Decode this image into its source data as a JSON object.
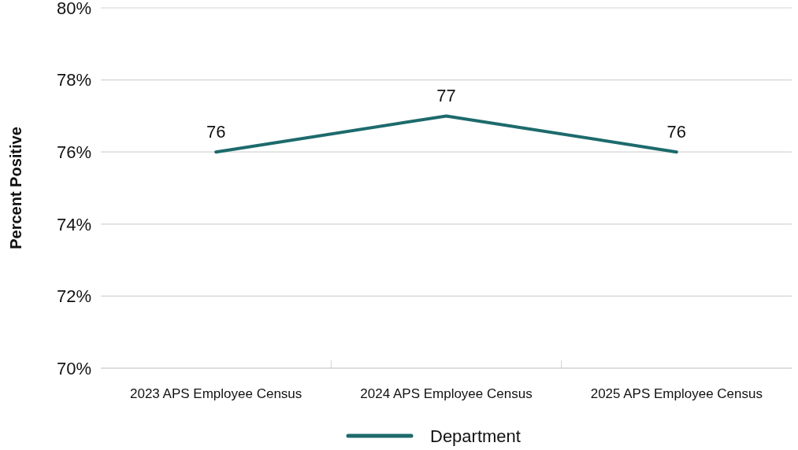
{
  "chart_data": {
    "type": "line",
    "ylabel": "Percent Positive",
    "categories": [
      "2023 APS Employee Census",
      "2024 APS Employee Census",
      "2025 APS Employee Census"
    ],
    "series": [
      {
        "name": "Department",
        "color": "#1d6a6c",
        "values": [
          76,
          77,
          76
        ]
      }
    ],
    "ylim": [
      70,
      80
    ],
    "yticks": [
      {
        "value": 70,
        "label": "70%"
      },
      {
        "value": 72,
        "label": "72%"
      },
      {
        "value": 74,
        "label": "74%"
      },
      {
        "value": 76,
        "label": "76%"
      },
      {
        "value": 78,
        "label": "78%"
      },
      {
        "value": 80,
        "label": "80%"
      }
    ],
    "grid": "y",
    "legend": "bottom",
    "data_labels": true,
    "marker": "none",
    "line_style": "solid"
  }
}
